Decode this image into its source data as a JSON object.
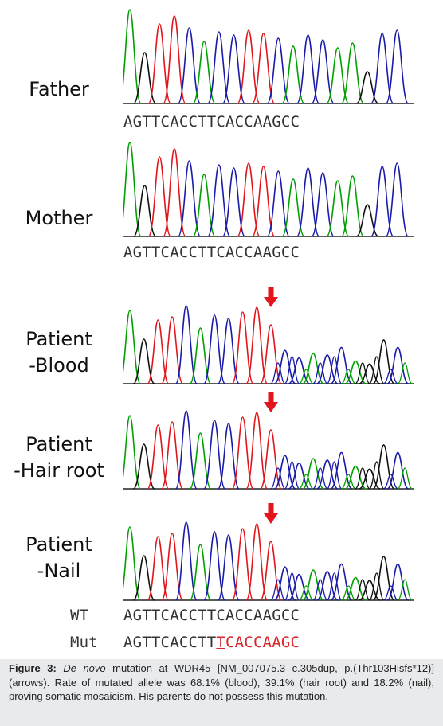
{
  "figure": {
    "panels": [
      {
        "label_lines": [
          "Father"
        ],
        "sequence": "AGTTCACCTTCACCAAGCC",
        "arrow": false,
        "colors": [
          "green",
          "black",
          "red",
          "red",
          "blue",
          "green",
          "blue",
          "blue",
          "red",
          "red",
          "blue",
          "green",
          "blue",
          "blue",
          "green",
          "green",
          "black",
          "blue",
          "blue"
        ]
      },
      {
        "label_lines": [
          "Mother"
        ],
        "sequence": "AGTTCACCTTCACCAAGCC",
        "arrow": false,
        "colors": [
          "green",
          "black",
          "red",
          "red",
          "blue",
          "green",
          "blue",
          "blue",
          "red",
          "red",
          "blue",
          "green",
          "blue",
          "blue",
          "green",
          "green",
          "black",
          "blue",
          "blue"
        ]
      },
      {
        "label_lines": [
          "Patient",
          "-Blood"
        ],
        "arrow": true,
        "colors": [
          "green",
          "black",
          "red",
          "red",
          "blue",
          "green",
          "blue",
          "blue",
          "red",
          "red",
          "red",
          "blue",
          "blue",
          "green",
          "blue",
          "blue",
          "green",
          "black",
          "black",
          "blue"
        ]
      },
      {
        "label_lines": [
          "Patient",
          "-Hair root"
        ],
        "arrow": true,
        "colors": [
          "green",
          "black",
          "red",
          "red",
          "blue",
          "green",
          "blue",
          "blue",
          "red",
          "red",
          "red",
          "blue",
          "blue",
          "green",
          "blue",
          "blue",
          "green",
          "black",
          "black",
          "blue"
        ]
      },
      {
        "label_lines": [
          "Patient",
          "-Nail"
        ],
        "arrow": true,
        "colors": [
          "green",
          "black",
          "red",
          "red",
          "blue",
          "green",
          "blue",
          "blue",
          "red",
          "red",
          "red",
          "blue",
          "blue",
          "green",
          "blue",
          "blue",
          "green",
          "black",
          "black",
          "blue"
        ]
      }
    ],
    "wt": {
      "label": "WT",
      "sequence": "AGTTCACCTTCACCAAGCC"
    },
    "mut": {
      "label": "Mut",
      "normal_part": "AGTTCACCTT",
      "inserted_base": "T",
      "mutated_part": "CACCAAGC"
    },
    "trace_colors": {
      "A": "#00a000",
      "C": "#1a1aa8",
      "G": "#111111",
      "T": "#e0161c",
      "arrow": "#e3141b"
    }
  },
  "caption": {
    "figure_label": "Figure 3:",
    "de_novo": "De novo",
    "text_1": " mutation at WDR45 [NM_007075.3 c.305dup, p.(Thr103Hisfs*12)] (arrows). Rate of mutated allele was 68.1% (blood), 39.1% (hair root) and 18.2% (nail), proving somatic mosaicism. His parents do not possess this mutation."
  }
}
